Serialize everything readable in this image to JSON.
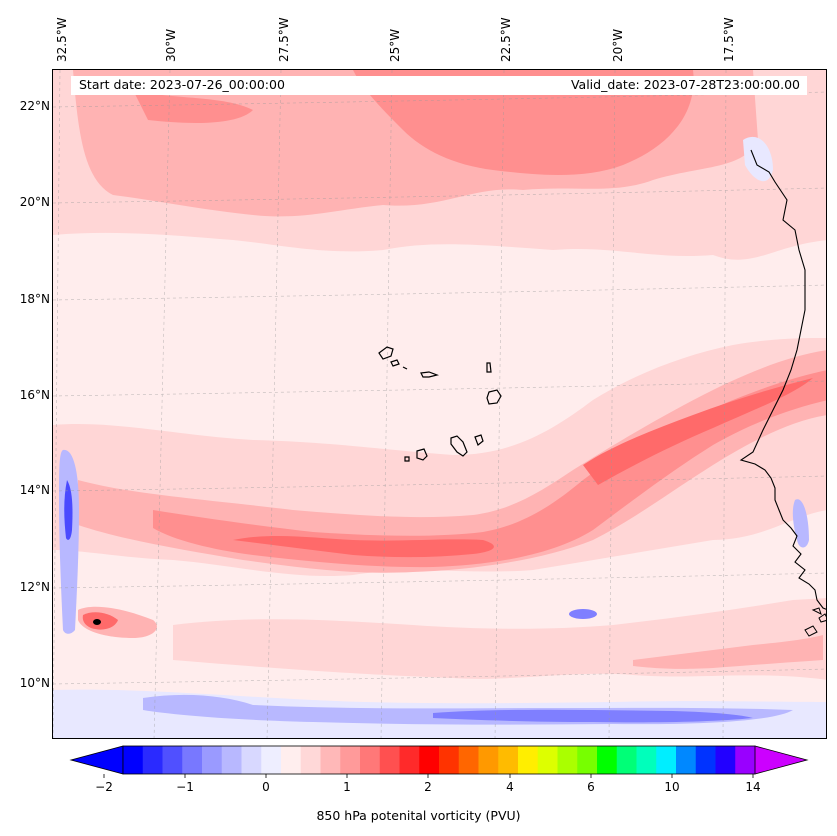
{
  "map": {
    "title_start": "Start date: 2023-07-26_00:00:00",
    "title_valid": "Valid_date: 2023-07-28T23:00:00.00",
    "lon_labels": [
      "32.5°W",
      "30°W",
      "27.5°W",
      "25°W",
      "22.5°W",
      "20°W",
      "17.5°W"
    ],
    "lat_labels": [
      "22°N",
      "20°N",
      "18°N",
      "16°N",
      "14°N",
      "12°N",
      "10°N"
    ],
    "variable": "850 hPa potential vorticity",
    "extent": {
      "lon_min": -32.6,
      "lon_max": -15.3,
      "lat_min": 8.9,
      "lat_max": 22.8
    }
  },
  "colorbar": {
    "label": "850 hPa potenital vorticity (PVU)",
    "tick_labels": [
      "−2",
      "−1",
      "0",
      "1",
      "2",
      "4",
      "6",
      "10",
      "14"
    ],
    "tick_values": [
      -2,
      -1,
      0,
      1,
      2,
      4,
      6,
      10,
      14
    ],
    "colors": [
      "#0000ff",
      "#2a2aff",
      "#5050ff",
      "#7878ff",
      "#9a9aff",
      "#b8b8ff",
      "#d8d8ff",
      "#eeeeff",
      "#ffeeee",
      "#ffd8d8",
      "#ffb8b8",
      "#ff9a9a",
      "#ff7878",
      "#ff5050",
      "#ff2a2a",
      "#ff0000",
      "#ff3300",
      "#ff6600",
      "#ff9900",
      "#ffbb00",
      "#ffee00",
      "#ddff00",
      "#aaff00",
      "#77ff00",
      "#00ff00",
      "#00ff77",
      "#00ffbb",
      "#00eeff",
      "#0088ff",
      "#0033ff",
      "#2200ff",
      "#9900ff"
    ],
    "extend_min_color": "#0000ff",
    "extend_max_color": "#cc00ff"
  },
  "contour_colors": {
    "background": "#ffeded",
    "pale_pink": "#ffd6d6",
    "light_red": "#ffb3b3",
    "mid_red": "#ff8f8f",
    "strong_red": "#ff6a6a",
    "pale_blue": "#e8e8ff",
    "light_blue": "#b8b8ff",
    "mid_blue": "#7f7fff",
    "deep_blue": "#4a4aff",
    "black": "#000000"
  }
}
